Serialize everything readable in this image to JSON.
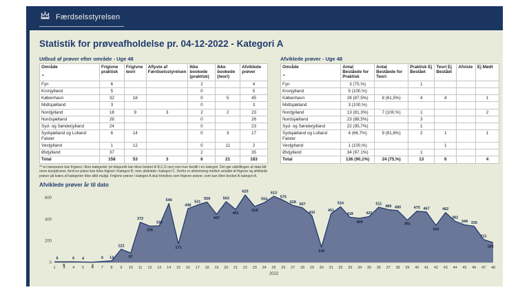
{
  "header": {
    "brand": "Færdselsstyrelsen"
  },
  "page": {
    "title": "Statistik for prøveafholdelse pr. 04-12-2022 - Kategori A"
  },
  "left_table": {
    "title": "Udbud af prøver efter område - Uge 48",
    "sort_indicator": "▲",
    "columns": [
      "Område",
      "Frigivne praktisk",
      "Frigivne teori",
      "Aflyste af Færdselsstyrelsen",
      "Ikke bookede (praktisk)",
      "Ikke bookede (teori)",
      "Afviklede prøver"
    ],
    "rows": [
      [
        "Fyn",
        "6",
        "",
        "",
        "2",
        "",
        "4"
      ],
      [
        "Kronjylland",
        "5",
        "",
        "",
        "0",
        "",
        "5"
      ],
      [
        "København",
        "32",
        "18",
        "",
        "0",
        "5",
        "45"
      ],
      [
        "Midtsjælland",
        "3",
        "",
        "",
        "0",
        "",
        "3"
      ],
      [
        "Nordjylland",
        "18",
        "9",
        "3",
        "2",
        "2",
        "23"
      ],
      [
        "Nordsjælland",
        "26",
        "",
        "",
        "0",
        "",
        "26"
      ],
      [
        "Syd- og Sønderjylland",
        "24",
        "",
        "",
        "0",
        "",
        "23"
      ],
      [
        "Sydsjælland og Lolland Falster",
        "6",
        "14",
        "",
        "0",
        "3",
        "17"
      ],
      [
        "Vestjylland",
        "1",
        "12",
        "",
        "0",
        "11",
        "2"
      ],
      [
        "Østjylland",
        "37",
        "",
        "",
        "2",
        "",
        "35"
      ]
    ],
    "total": [
      "Total",
      "158",
      "53",
      "3",
      "6",
      "21",
      "183"
    ],
    "footnote": "** en køreprøve kan frigives i flere kategorier (et tidspunkt kan blive booket til B,C,D osv) men kun bestilt i en kategori. Det gør udstillingen af data lidt mere kompliceret, fordi en prøve kan blive frigivet i Kategori B, men afviklede i kategori C. Derfor er afstemning mellem antallet af frigivne og afviklede prøver på tværs af kategorier ikke altid muligt. Frigivne prøver i kategori A skal fortolkes som frigivne prøver, som kan blive booket til kategori A."
  },
  "right_table": {
    "title": "Afviklede prøver - Uge 48",
    "sort_indicator": "▲",
    "columns": [
      "Område",
      "Antal Beståede for Praktisk",
      "Antal Beståede for Teori",
      "Praktisk Ej Bestået",
      "Teori Ej Bestået",
      "Afviste",
      "Ej Mødt"
    ],
    "rows": [
      [
        "Fyn",
        "3 (75,%)",
        "",
        "1",
        "",
        "",
        ""
      ],
      [
        "Kronjylland",
        "5 (100,%)",
        "",
        "",
        "",
        "",
        ""
      ],
      [
        "København",
        "28 (87,5%)",
        "8 (61,5%)",
        "4",
        "4",
        "",
        "1"
      ],
      [
        "Midtsjælland",
        "3 (100,%)",
        "",
        "",
        "",
        "",
        ""
      ],
      [
        "Nordjylland",
        "13 (81,3%)",
        "7 (100,%)",
        "1",
        "",
        "",
        "2"
      ],
      [
        "Nordsjælland",
        "23 (88,5%)",
        "",
        "3",
        "",
        "",
        ""
      ],
      [
        "Syd- og Sønderjylland",
        "22 (95,7%)",
        "",
        "1",
        "",
        "",
        ""
      ],
      [
        "Sydsjælland og Lolland Falster",
        "4 (66,7%)",
        "9 (81,8%)",
        "2",
        "1",
        "",
        "1"
      ],
      [
        "Vestjylland",
        "1 (100,%)",
        "",
        "",
        "1",
        "",
        ""
      ],
      [
        "Østjylland",
        "34 (97,1%)",
        "",
        "1",
        "",
        "",
        ""
      ]
    ],
    "total": [
      "Total",
      "136 (90,1%)",
      "24 (75,%)",
      "13",
      "6",
      "",
      "4"
    ]
  },
  "chart_data": {
    "type": "area",
    "title": "Afviklede prøver år til dato",
    "x": [
      1,
      3,
      4,
      5,
      6,
      7,
      8,
      9,
      10,
      11,
      12,
      13,
      14,
      15,
      16,
      17,
      18,
      19,
      20,
      21,
      22,
      23,
      24,
      25,
      26,
      27,
      28,
      29,
      30,
      31,
      32,
      33,
      34,
      35,
      36,
      37,
      38,
      39,
      40,
      41,
      42,
      43,
      44,
      45,
      46,
      47,
      48
    ],
    "values": [
      6,
      5,
      6,
      4,
      2,
      9,
      14,
      122,
      87,
      372,
      336,
      339,
      546,
      171,
      498,
      531,
      559,
      447,
      563,
      491,
      625,
      518,
      554,
      613,
      575,
      528,
      507,
      432,
      142,
      451,
      516,
      418,
      409,
      425,
      511,
      489,
      480,
      391,
      475,
      467,
      343,
      462,
      382,
      348,
      335,
      211,
      183
    ],
    "xlabel": "2022",
    "ylabel": "",
    "ylim": [
      0,
      600
    ],
    "yticks": [
      0,
      200,
      400,
      600
    ],
    "grid": false,
    "legend": false,
    "colors": {
      "fill": "#5f6d92",
      "line": "#20396a",
      "label_above": "#142b50",
      "label_below": "#0e1c36"
    }
  },
  "colors": {
    "navy": "#1a3560",
    "beige": "#e9ebda",
    "title": "#1e3a6e"
  }
}
